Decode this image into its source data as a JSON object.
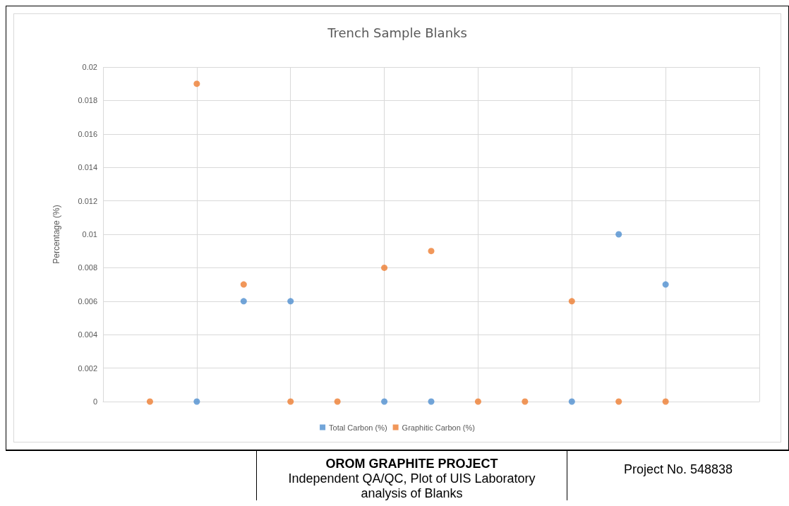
{
  "chart_data": {
    "type": "scatter",
    "title": "Trench Sample Blanks",
    "ylabel": "Percentage (%)",
    "categories": [
      null,
      null,
      null,
      null,
      null,
      null,
      null,
      null,
      null,
      null,
      null,
      null,
      null,
      null,
      null
    ],
    "series": [
      {
        "name": "Total Carbon (%)",
        "color": "#4f8fd0",
        "values": [
          null,
          null,
          0,
          0.006,
          0.006,
          null,
          0,
          0,
          null,
          null,
          0,
          0.01,
          0.007,
          null,
          null
        ]
      },
      {
        "name": "Graphitic Carbon (%)",
        "color": "#ed7d31",
        "values": [
          null,
          0,
          0.019,
          0.007,
          0,
          0,
          0.008,
          0.009,
          0,
          0,
          0.006,
          0,
          0,
          null,
          null
        ]
      }
    ],
    "ylim": [
      0,
      0.02
    ],
    "yticks": [
      0,
      0.002,
      0.004,
      0.006,
      0.008,
      0.01,
      0.012,
      0.014,
      0.016,
      0.018,
      0.02
    ],
    "grid": true,
    "legend": "bottom",
    "marker": "circle",
    "tick_labels": "y",
    "annotations": [
      "OROM GRAPHITE PROJECT",
      "Independent QA/QC, Plot of UIS Laboratory analysis of Blanks",
      "Project No. 548838"
    ]
  }
}
